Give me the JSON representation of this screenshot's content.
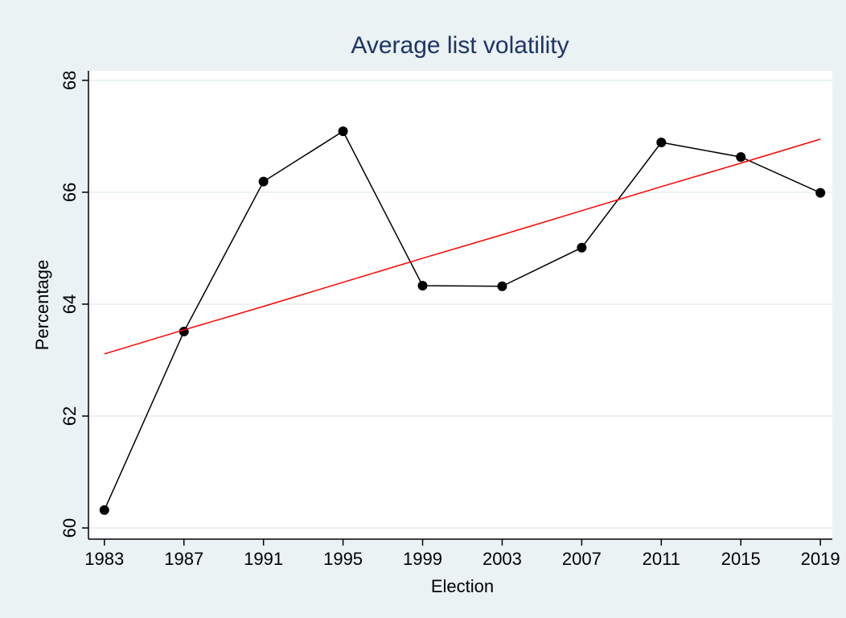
{
  "chart_data": {
    "type": "line",
    "title": "Average list volatility",
    "x_label": "Election",
    "y_label": "Percentage",
    "x": [
      1983,
      1987,
      1991,
      1995,
      1999,
      2003,
      2007,
      2011,
      2015,
      2019
    ],
    "series": [
      {
        "color": "#000000",
        "marker": true,
        "values": [
          60.32,
          63.51,
          66.19,
          67.09,
          64.33,
          64.32,
          65.01,
          66.89,
          66.63,
          65.99
        ]
      },
      {
        "color": "#ff0000",
        "marker": false,
        "values": [
          63.11,
          63.54,
          63.96,
          64.39,
          64.82,
          65.24,
          65.67,
          66.1,
          66.52,
          66.95
        ]
      }
    ],
    "xlim": [
      1982.2,
      2019.6
    ],
    "xticks": [
      1983,
      1987,
      1991,
      1995,
      1999,
      2003,
      2007,
      2011,
      2015,
      2019
    ],
    "ylim": [
      59.8,
      68.17
    ],
    "yticks": [
      60,
      62,
      64,
      66,
      68
    ],
    "grid": true
  }
}
